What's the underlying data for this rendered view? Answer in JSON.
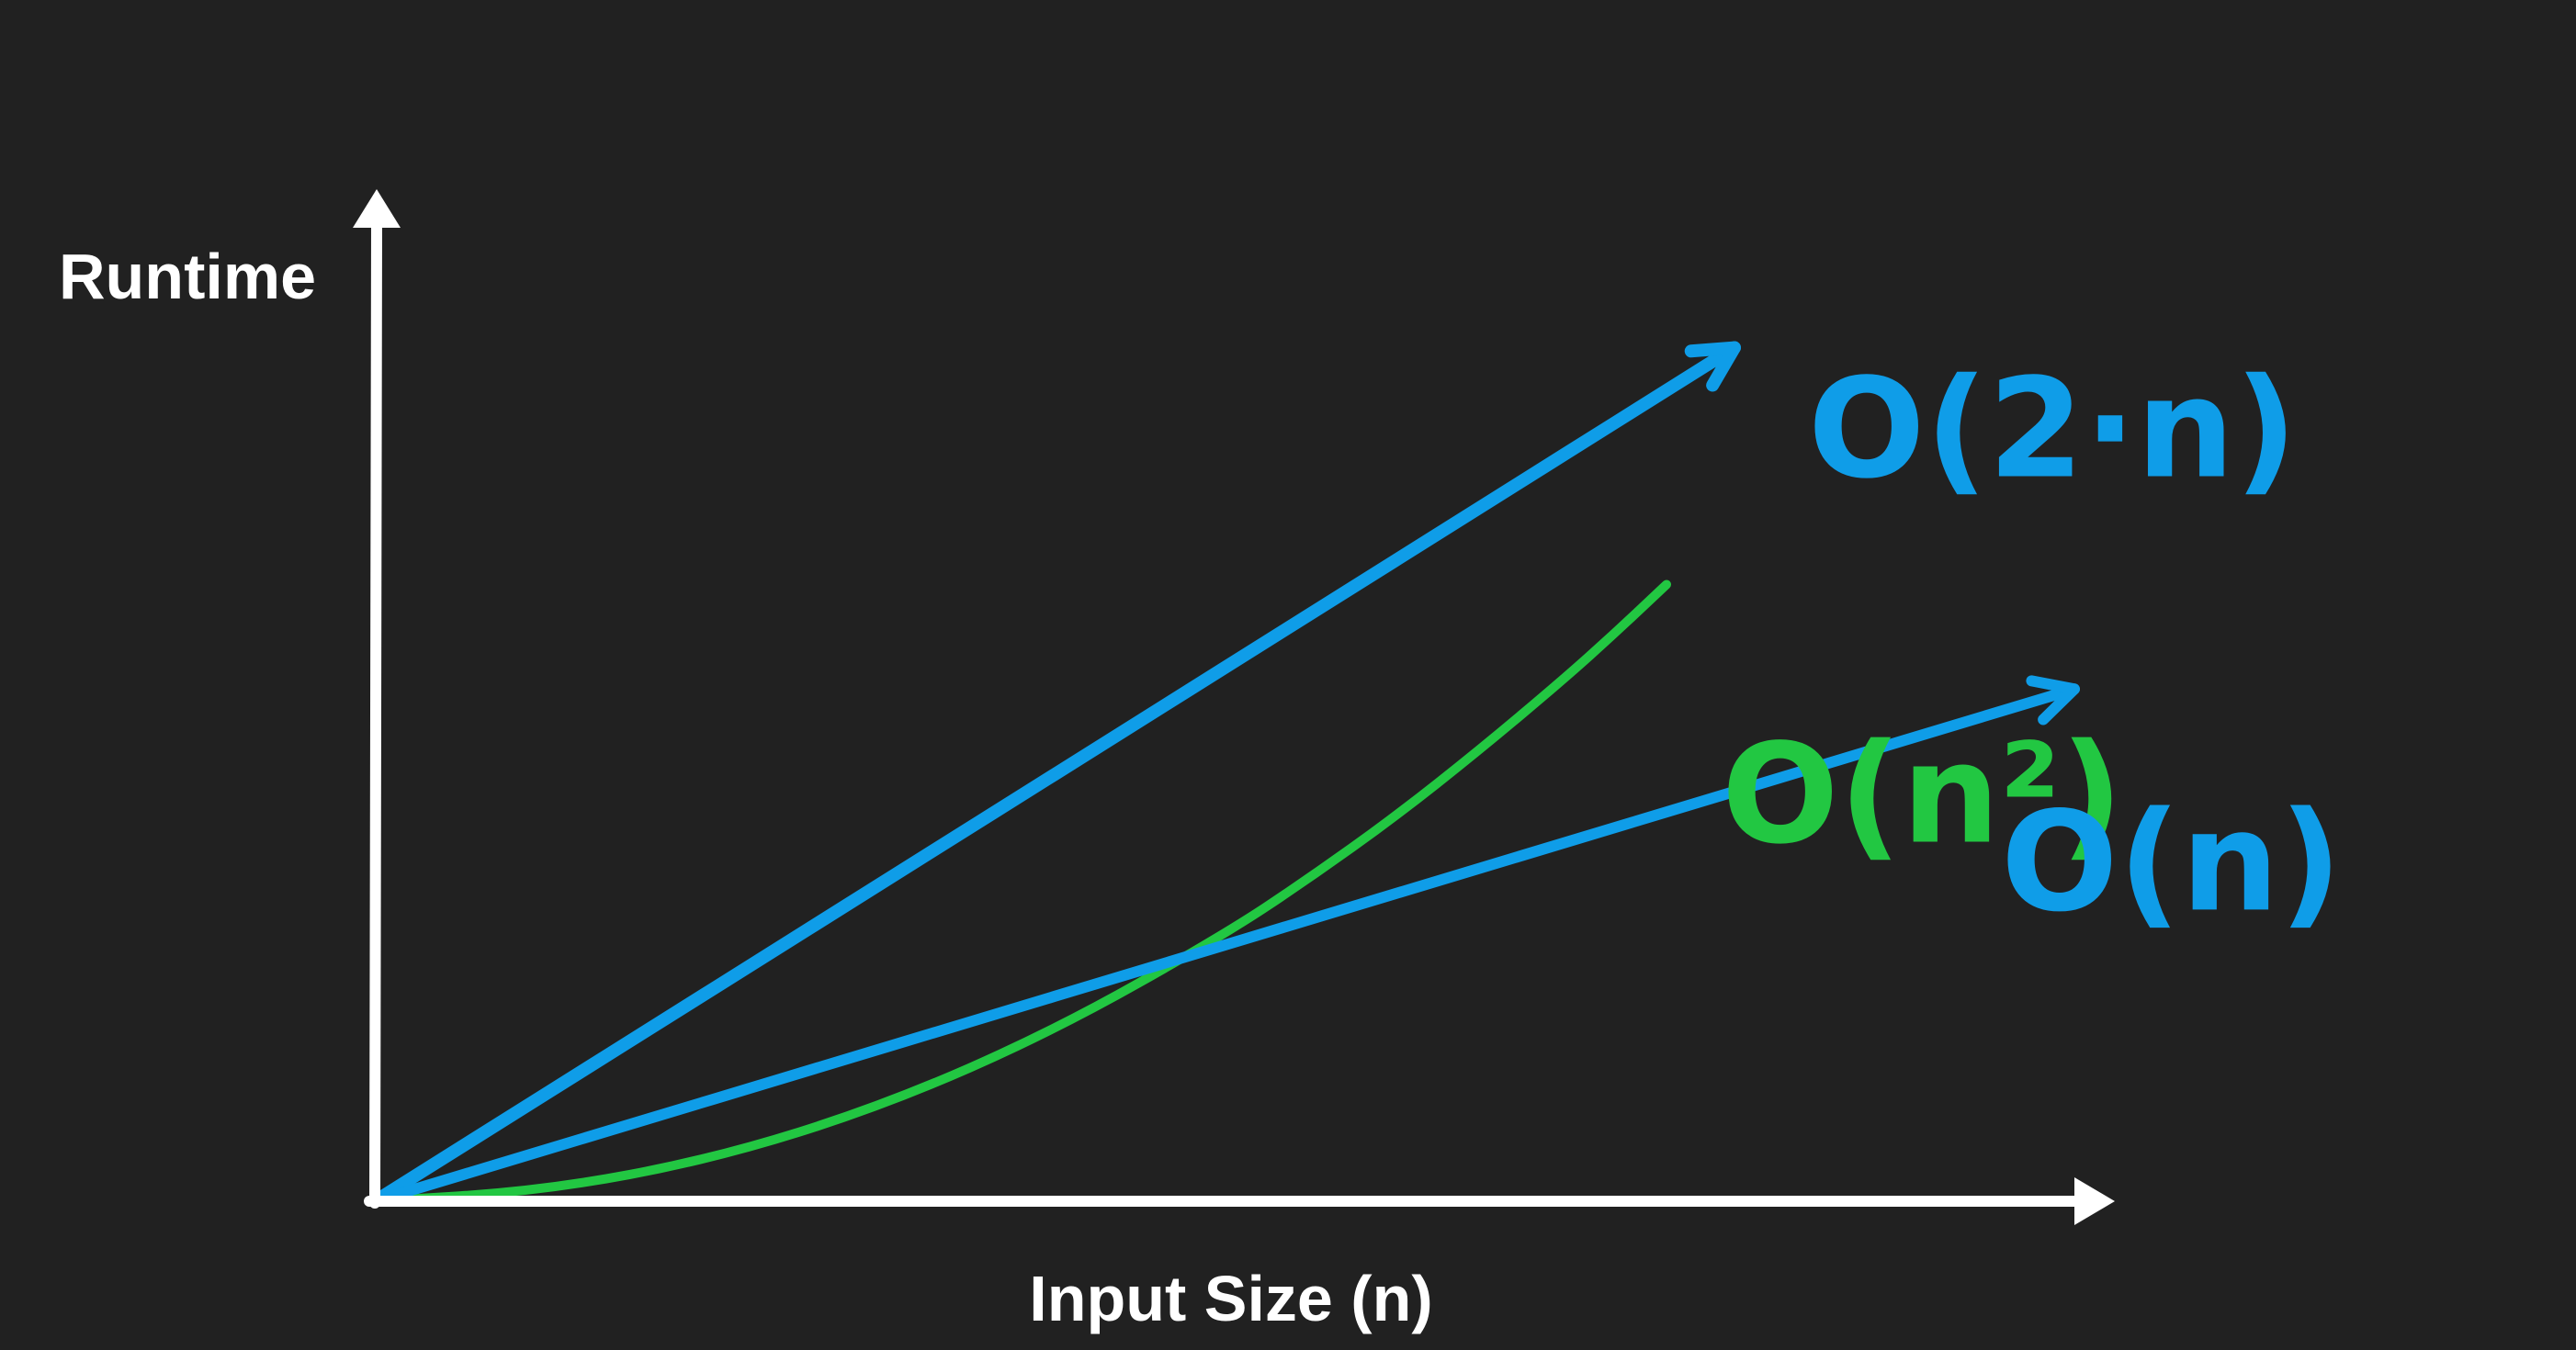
{
  "chart_data": {
    "type": "line",
    "title": "",
    "xlabel": "Input Size (n)",
    "ylabel": "Runtime",
    "grid": false,
    "xlim": [
      0,
      10
    ],
    "ylim": [
      0,
      11
    ],
    "series": [
      {
        "name": "O(n²)",
        "color": "#22c742",
        "x": [
          0,
          1,
          2,
          3,
          4,
          5,
          5.5,
          6,
          6.5,
          7,
          7.3,
          7.6
        ],
        "y": [
          0,
          0.1,
          0.4,
          0.9,
          1.6,
          2.5,
          3.03,
          3.6,
          4.23,
          4.9,
          5.33,
          5.78
        ]
      },
      {
        "name": "O(2·n)",
        "color": "#0f9de8",
        "x": [
          0,
          1,
          2,
          3,
          4,
          5,
          6,
          7,
          7.3,
          8
        ],
        "y": [
          0,
          1.0,
          2.0,
          3.0,
          4.0,
          5.0,
          6.0,
          7.0,
          7.3,
          8.0
        ]
      },
      {
        "name": "O(n)",
        "color": "#0f9de8",
        "x": [
          0,
          2,
          4,
          6,
          8,
          10
        ],
        "y": [
          0,
          0.96,
          1.92,
          2.88,
          3.84,
          4.8
        ]
      }
    ],
    "axis_color": "#ffffff",
    "background": "#212121"
  }
}
